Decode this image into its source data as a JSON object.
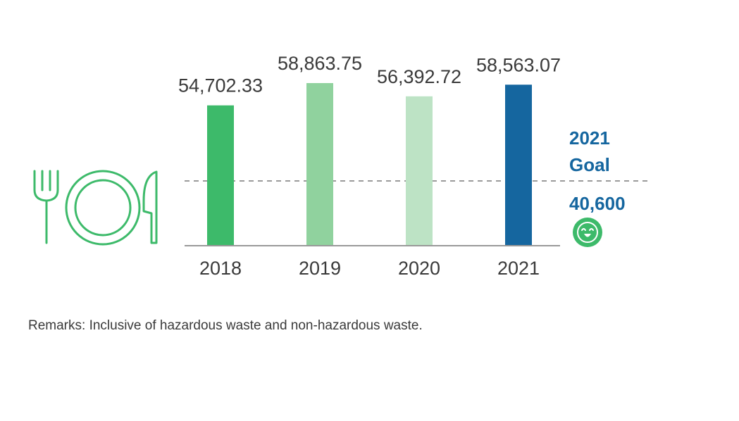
{
  "chart_data": {
    "type": "bar",
    "categories": [
      "2018",
      "2019",
      "2020",
      "2021"
    ],
    "values": [
      54702.33,
      58863.75,
      56392.72,
      58563.07
    ],
    "value_labels": [
      "54,702.33",
      "58,863.75",
      "56,392.72",
      "58,563.07"
    ],
    "bar_colors": [
      "#3dba6a",
      "#90d29e",
      "#bde3c5",
      "#15669f"
    ],
    "ylim": [
      40600,
      58863.75
    ],
    "grid": false,
    "goal": {
      "year_label": "2021",
      "word_label": "Goal",
      "value": 40600,
      "value_label": "40,600",
      "color": "#15669f",
      "line_color": "#9a9a9a"
    }
  },
  "icons": {
    "tableware": "fork-plate-knife-icon",
    "goal_status": "smiley-face-icon"
  },
  "colors": {
    "icon_green": "#3dba6a",
    "axis": "#999999",
    "text": "#3a3a3a"
  },
  "remarks": "Remarks: Inclusive of hazardous waste and non-hazardous waste."
}
